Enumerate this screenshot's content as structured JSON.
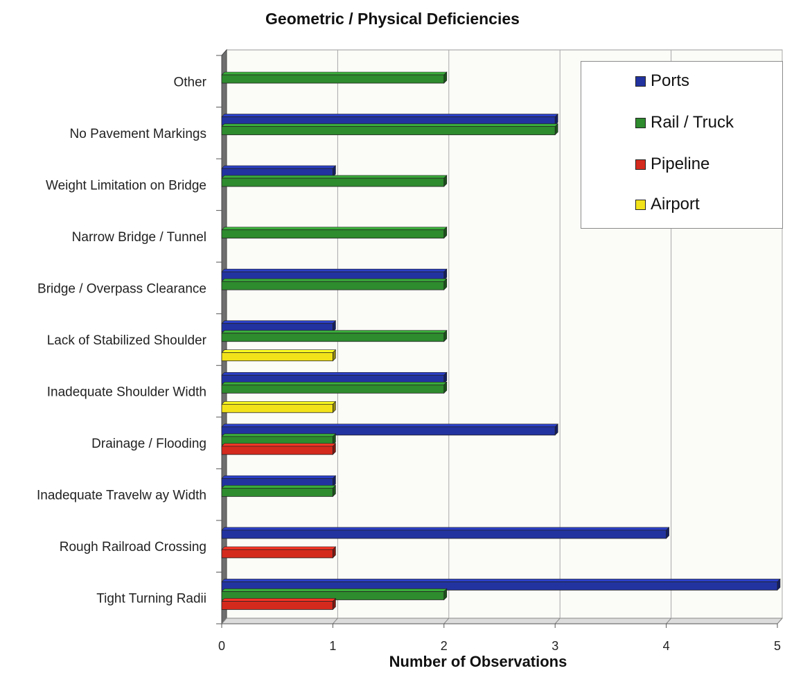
{
  "chart_data": {
    "type": "bar",
    "orientation": "horizontal",
    "title": "Geometric / Physical Deficiencies",
    "xlabel": "Number of Observations",
    "ylabel": "",
    "xlim": [
      0,
      5
    ],
    "x_ticks": [
      "0",
      "1",
      "2",
      "3",
      "4",
      "5"
    ],
    "grid": true,
    "legend_position": "top-right",
    "categories": [
      "Other",
      "No Pavement Markings",
      "Weight Limitation on Bridge",
      "Narrow  Bridge / Tunnel",
      "Bridge / Overpass Clearance",
      "Lack of Stabilized Shoulder",
      "Inadequate Shoulder Width",
      "Drainage / Flooding",
      "Inadequate Travelw ay Width",
      "Rough Railroad Crossing",
      "Tight Turning Radii"
    ],
    "series": [
      {
        "name": "Ports",
        "color": "#2233a0",
        "values": [
          0,
          3,
          1,
          0,
          2,
          1,
          2,
          3,
          1,
          4,
          5
        ]
      },
      {
        "name": "Rail / Truck",
        "color": "#2e8b2e",
        "values": [
          2,
          3,
          2,
          2,
          2,
          2,
          2,
          1,
          1,
          0,
          2
        ]
      },
      {
        "name": "Pipeline",
        "color": "#d42a1e",
        "values": [
          0,
          0,
          0,
          0,
          0,
          0,
          0,
          1,
          0,
          1,
          1
        ]
      },
      {
        "name": "Airport",
        "color": "#f2e21a",
        "values": [
          0,
          0,
          0,
          0,
          0,
          1,
          1,
          0,
          0,
          0,
          0
        ]
      }
    ]
  }
}
